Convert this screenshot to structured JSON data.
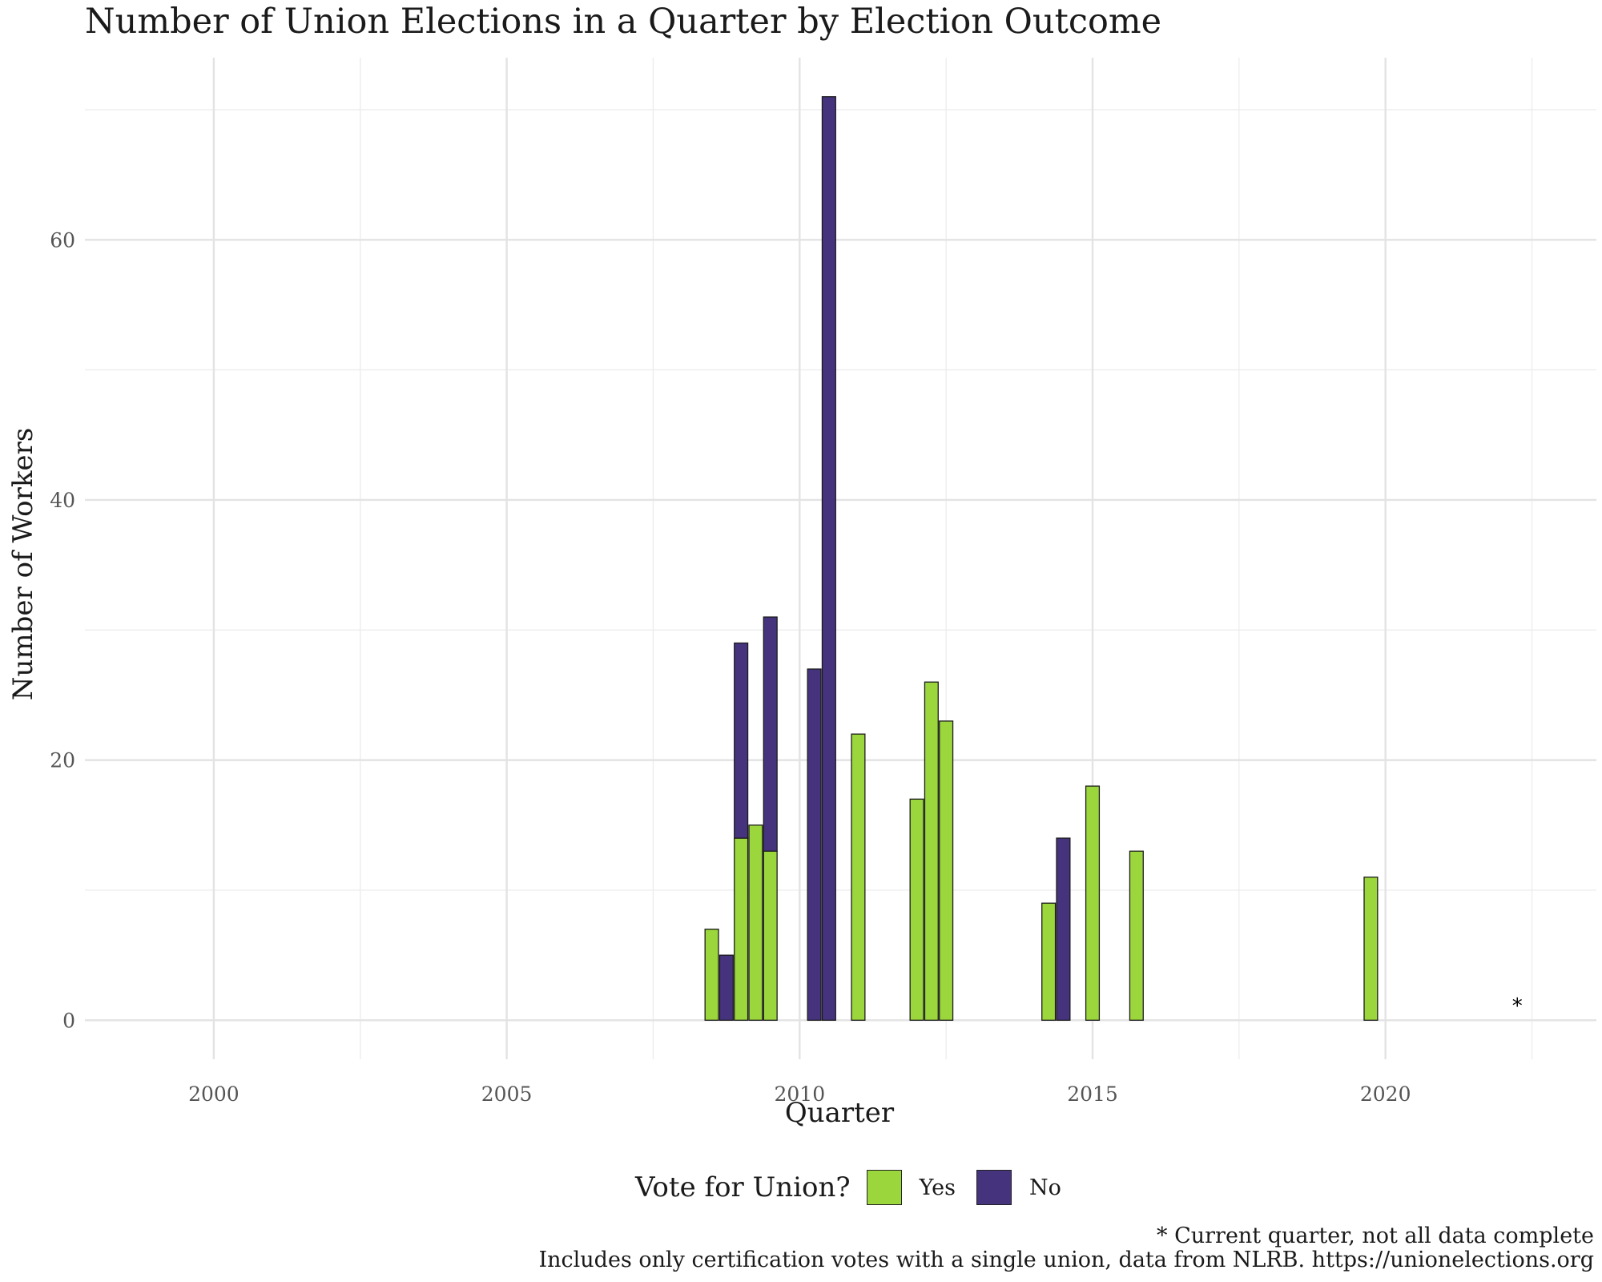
{
  "chart_data": {
    "type": "bar",
    "title": "Number of Union Elections in a Quarter by Election Outcome",
    "xlabel": "Quarter",
    "ylabel": "Number of Workers",
    "x_ticks": [
      2000,
      2005,
      2010,
      2015,
      2020
    ],
    "y_ticks": [
      0,
      20,
      40,
      60
    ],
    "xlim": [
      1997.8,
      2023.6
    ],
    "ylim": [
      -3,
      74
    ],
    "grid": true,
    "legend": {
      "title": "Vote for Union?",
      "position": "bottom",
      "entries": [
        {
          "label": "Yes",
          "color": "#9bd63c"
        },
        {
          "label": "No",
          "color": "#46337e"
        }
      ]
    },
    "series": [
      {
        "name": "Yes",
        "color": "#9bd63c",
        "points": [
          {
            "quarter": 2008.5,
            "value": 7
          },
          {
            "quarter": 2009.0,
            "value": 14
          },
          {
            "quarter": 2009.25,
            "value": 15
          },
          {
            "quarter": 2009.5,
            "value": 13
          },
          {
            "quarter": 2011.0,
            "value": 22
          },
          {
            "quarter": 2012.0,
            "value": 17
          },
          {
            "quarter": 2012.25,
            "value": 26
          },
          {
            "quarter": 2012.5,
            "value": 23
          },
          {
            "quarter": 2014.25,
            "value": 9
          },
          {
            "quarter": 2015.0,
            "value": 18
          },
          {
            "quarter": 2015.75,
            "value": 13
          },
          {
            "quarter": 2019.75,
            "value": 11
          }
        ]
      },
      {
        "name": "No",
        "color": "#46337e",
        "points": [
          {
            "quarter": 2008.75,
            "value": 5
          },
          {
            "quarter": 2009.0,
            "value": 15
          },
          {
            "quarter": 2009.5,
            "value": 18
          },
          {
            "quarter": 2010.25,
            "value": 27
          },
          {
            "quarter": 2010.5,
            "value": 71
          },
          {
            "quarter": 2014.5,
            "value": 14
          }
        ]
      }
    ],
    "annotation": {
      "text": "*",
      "quarter": 2022.25,
      "value": 1.3
    },
    "captions": [
      "* Current quarter, not all data complete",
      "Includes only certification votes with a single union, data from NLRB. https://unionelections.org"
    ]
  }
}
